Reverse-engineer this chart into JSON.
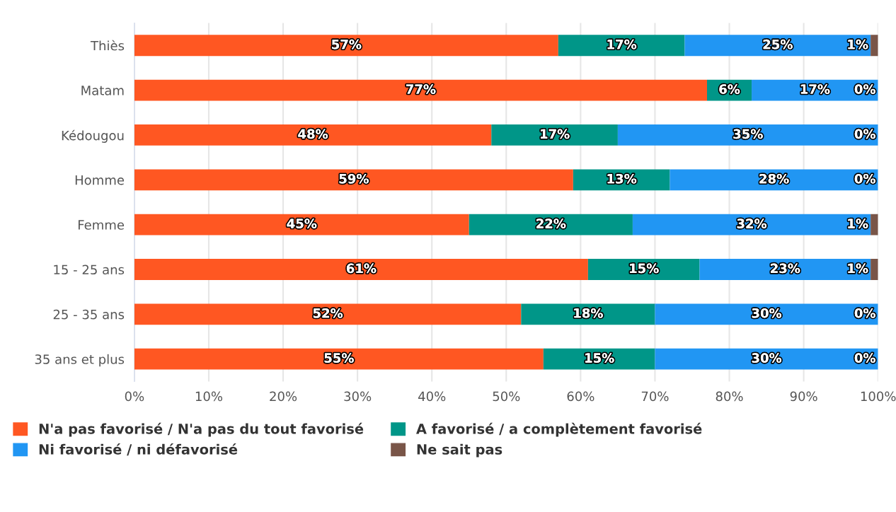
{
  "chart_data": {
    "type": "bar",
    "orientation": "horizontal",
    "stacked": true,
    "categories": [
      "Thiès",
      "Matam",
      "Kédougou",
      "Homme",
      "Femme",
      "15 - 25 ans",
      "25 - 35 ans",
      "35 ans et plus"
    ],
    "series": [
      {
        "name": "N'a pas favorisé / N'a pas du tout favorisé",
        "color": "#ff5722",
        "values": [
          57,
          77,
          48,
          59,
          45,
          61,
          52,
          55
        ],
        "value_labels": [
          "57%",
          "77%",
          "48%",
          "59%",
          "45%",
          "61%",
          "52%",
          "55%"
        ]
      },
      {
        "name": "A favorisé / a complètement favorisé",
        "color": "#009688",
        "values": [
          17,
          6,
          17,
          13,
          22,
          15,
          18,
          15
        ],
        "value_labels": [
          "17%",
          "6%",
          "17%",
          "13%",
          "22%",
          "15%",
          "18%",
          "15%"
        ]
      },
      {
        "name": "Ni favorisé / ni défavorisé",
        "color": "#2196f3",
        "values": [
          25,
          17,
          35,
          28,
          32,
          23,
          30,
          30
        ],
        "value_labels": [
          "25%",
          "17%",
          "35%",
          "28%",
          "32%",
          "23%",
          "30%",
          "30%"
        ]
      },
      {
        "name": "Ne sait pas",
        "color": "#795548",
        "values": [
          1,
          0,
          0,
          0,
          1,
          1,
          0,
          0
        ],
        "value_labels": [
          "1%",
          "0%",
          "0%",
          "0%",
          "1%",
          "1%",
          "0%",
          "0%"
        ]
      }
    ],
    "xlim": [
      0,
      100
    ],
    "xticks": [
      {
        "value": 0,
        "label": "0%"
      },
      {
        "value": 10,
        "label": "10%"
      },
      {
        "value": 20,
        "label": "20%"
      },
      {
        "value": 30,
        "label": "30%"
      },
      {
        "value": 40,
        "label": "40%"
      },
      {
        "value": 50,
        "label": "50%"
      },
      {
        "value": 60,
        "label": "60%"
      },
      {
        "value": 70,
        "label": "70%"
      },
      {
        "value": 80,
        "label": "80%"
      },
      {
        "value": 90,
        "label": "90%"
      },
      {
        "value": 100,
        "label": "100%"
      }
    ],
    "grid": "x",
    "legend": "bottom"
  }
}
